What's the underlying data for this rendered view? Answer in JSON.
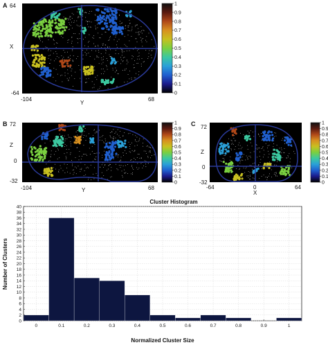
{
  "panels": [
    {
      "id": "A",
      "letter": "A",
      "axis_vertical_label": "X",
      "axis_horizontal_label": "Y",
      "v_top": "64",
      "v_bottom": "-64",
      "h_left": "-104",
      "h_right": "68",
      "view": "axial"
    },
    {
      "id": "B",
      "letter": "B",
      "axis_vertical_label": "Z",
      "axis_horizontal_label": "Y",
      "v_top": "72",
      "v_mid": "0",
      "v_bottom": "-32",
      "h_left": "-104",
      "h_right": "68",
      "view": "sagittal"
    },
    {
      "id": "C",
      "letter": "C",
      "axis_vertical_label": "Z",
      "axis_horizontal_label": "X",
      "v_top": "72",
      "v_mid": "0",
      "v_bottom": "-32",
      "h_left": "-64",
      "h_mid": "0",
      "h_right": "64",
      "view": "coronal"
    }
  ],
  "colorbar_ticks": [
    "1",
    "0.9",
    "0.8",
    "0.7",
    "0.6",
    "0.5",
    "0.4",
    "0.3",
    "0.2",
    "0.1",
    "0"
  ],
  "colorbar_ticks_c": [
    "1",
    "0.9",
    "0.8",
    "0.7",
    "0.6",
    "0.5",
    "0.4",
    "0.3",
    "0.2",
    "0.1",
    "0"
  ],
  "colormap": [
    "#000000",
    "#1a1a8c",
    "#2060d0",
    "#2aa0d8",
    "#3cc8a0",
    "#7ad040",
    "#c8c020",
    "#d89020",
    "#b04818",
    "#5a1a10",
    "#101010"
  ],
  "chart_data": {
    "type": "bar",
    "title": "Cluster Histogram",
    "xlabel": "Normalized Cluster Size",
    "ylabel": "Number of Clusters",
    "x_ticks": [
      "0",
      "0.1",
      "0.2",
      "0.3",
      "0.4",
      "0.5",
      "0.6",
      "0.7",
      "0.8",
      "0.9",
      "1"
    ],
    "y_ticks": [
      "0",
      "2",
      "4",
      "6",
      "8",
      "10",
      "12",
      "14",
      "16",
      "18",
      "20",
      "22",
      "24",
      "26",
      "28",
      "30",
      "32",
      "34",
      "36",
      "38",
      "40"
    ],
    "xlim": [
      -0.05,
      1.05
    ],
    "ylim": [
      0,
      40
    ],
    "bin_width": 0.1,
    "bins": [
      {
        "center": 0.0,
        "value": 2
      },
      {
        "center": 0.1,
        "value": 36
      },
      {
        "center": 0.2,
        "value": 15
      },
      {
        "center": 0.3,
        "value": 14
      },
      {
        "center": 0.4,
        "value": 9
      },
      {
        "center": 0.5,
        "value": 2
      },
      {
        "center": 0.6,
        "value": 1
      },
      {
        "center": 0.7,
        "value": 2
      },
      {
        "center": 0.8,
        "value": 1
      },
      {
        "center": 0.9,
        "value": 0
      },
      {
        "center": 1.0,
        "value": 1
      }
    ],
    "bar_color": "#0d1640",
    "grid": true
  }
}
